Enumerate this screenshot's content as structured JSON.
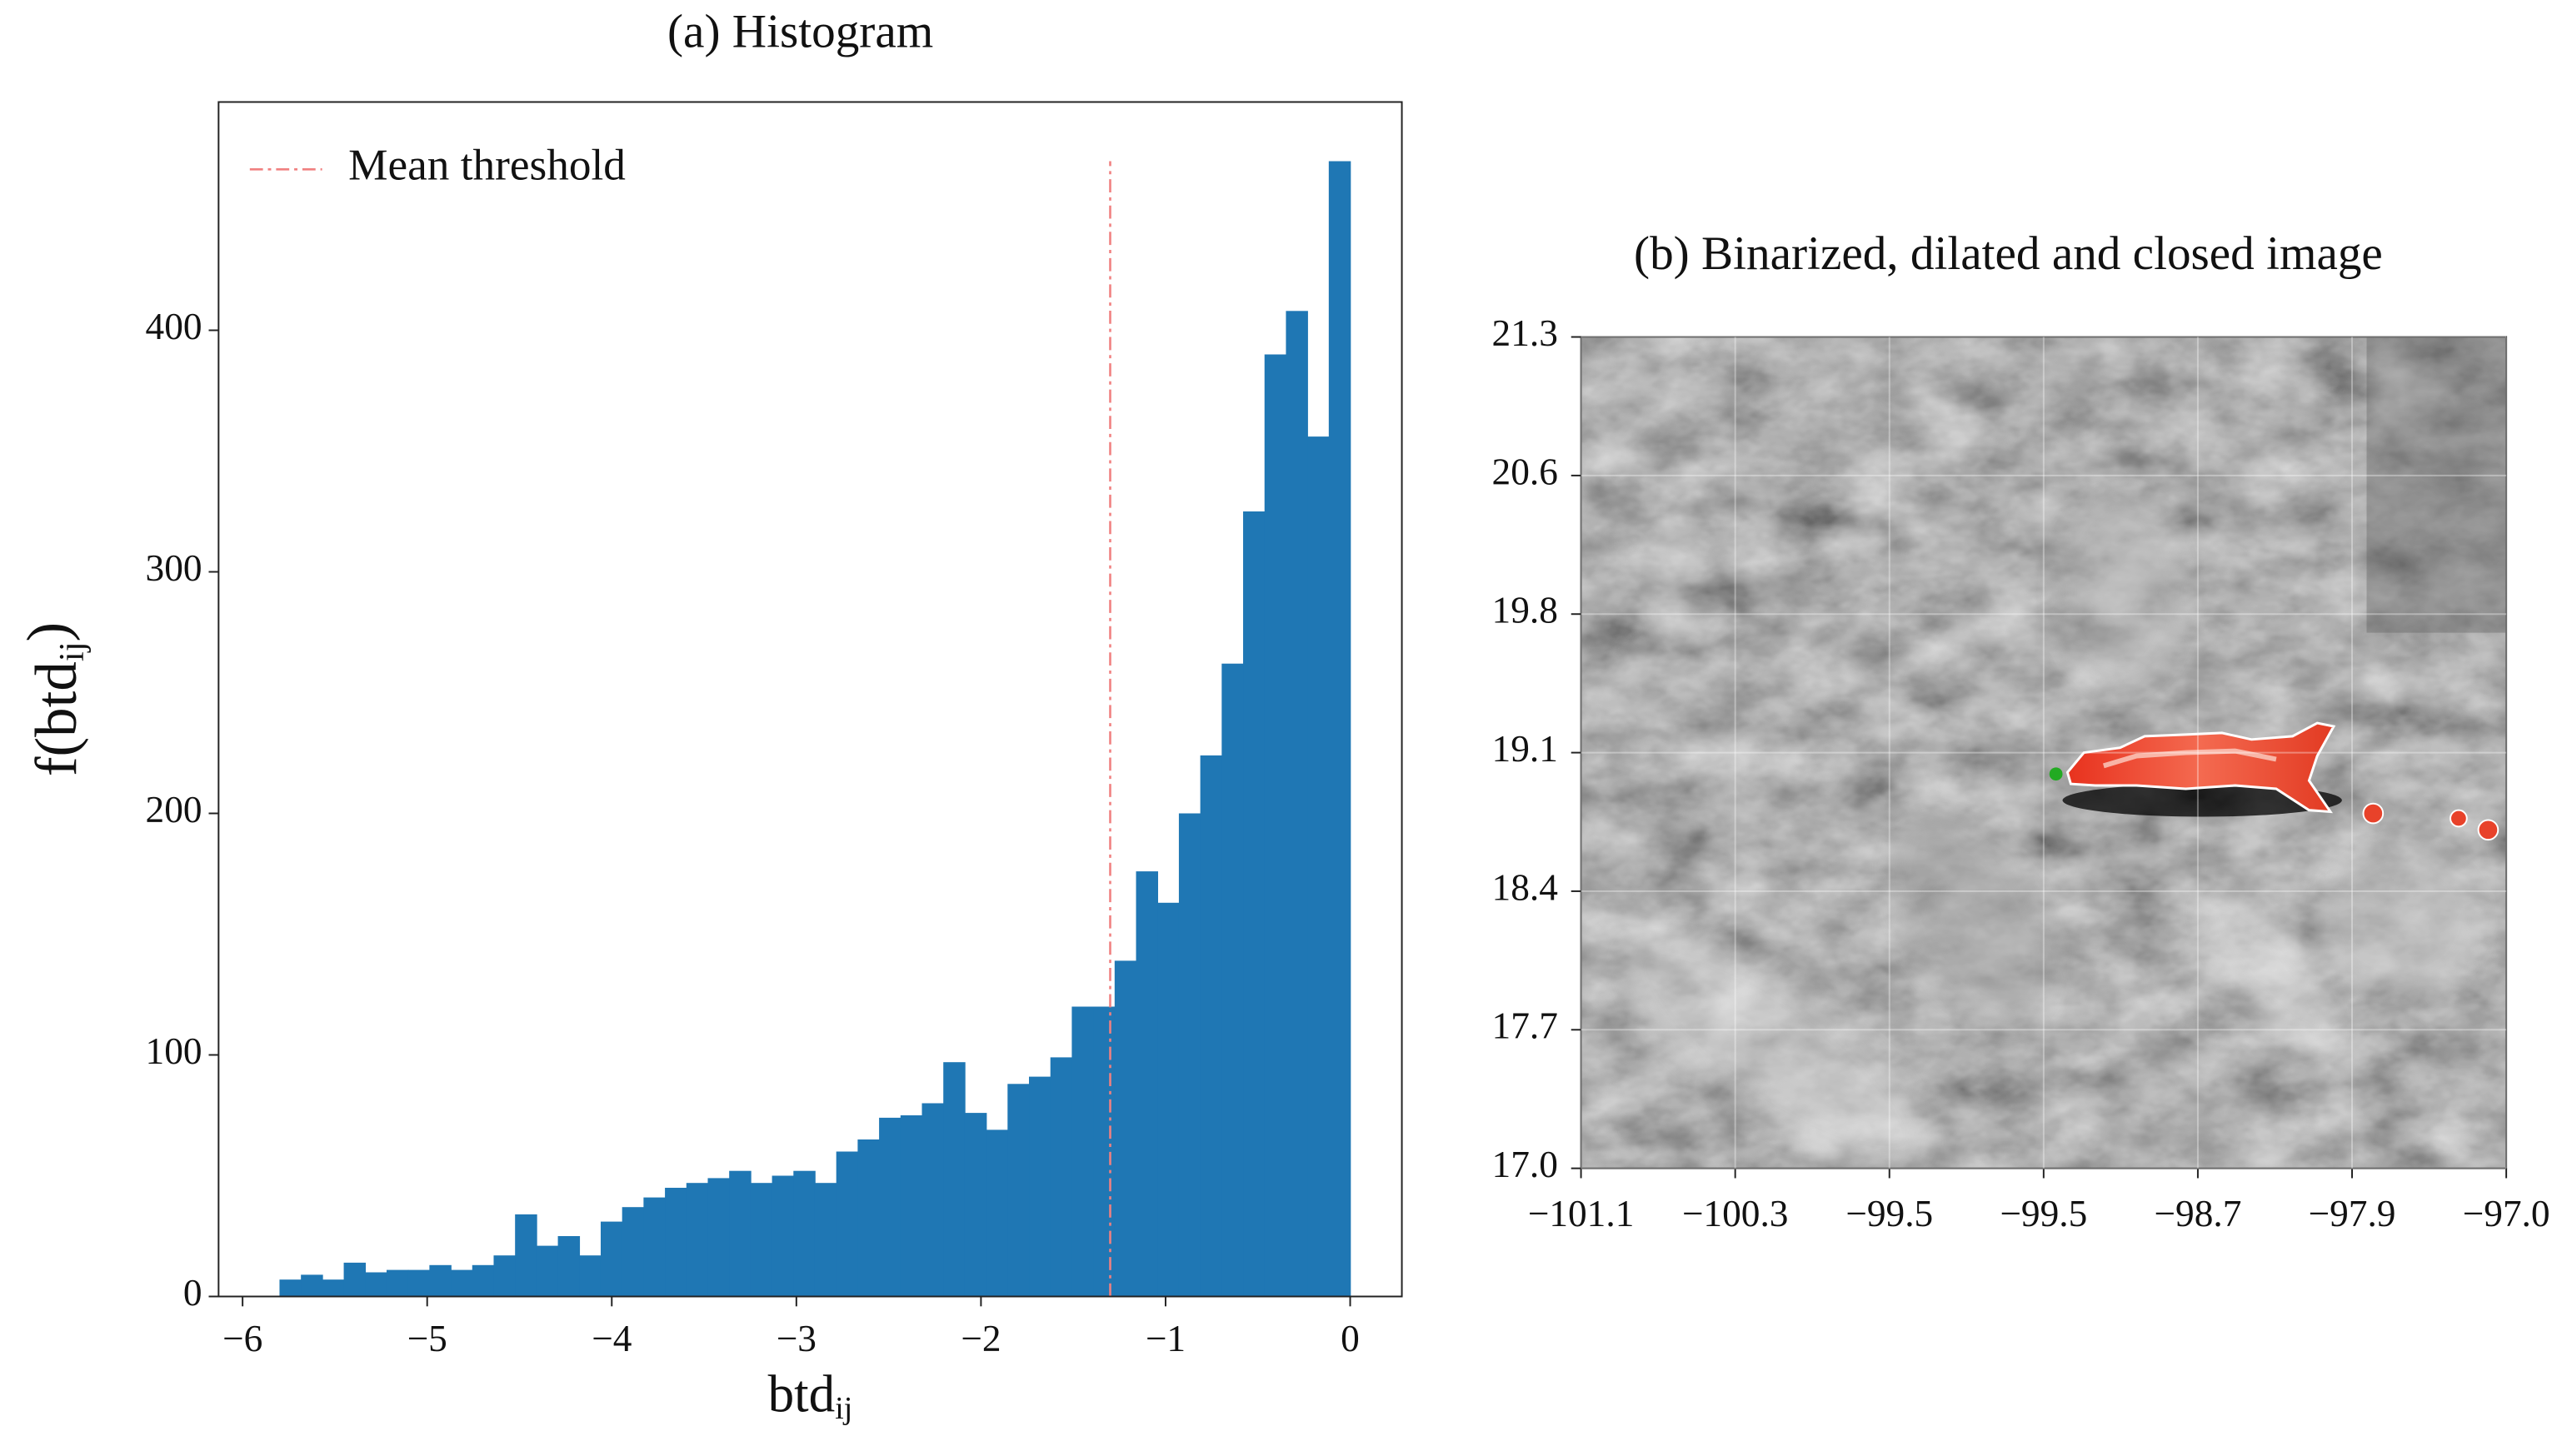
{
  "chart_data": [
    {
      "type": "histogram",
      "title": "(a) Histogram",
      "xlabel": {
        "base": "btd",
        "sub": "ij"
      },
      "ylabel": {
        "base": "f(btd",
        "sub": "ij",
        "end": ")"
      },
      "bins": [
        -5.8,
        -5.684,
        -5.568,
        -5.452,
        -5.336,
        -5.22,
        -5.104,
        -4.988,
        -4.872,
        -4.756,
        -4.64,
        -4.524,
        -4.408,
        -4.292,
        -4.176,
        -4.06,
        -3.944,
        -3.828,
        -3.712,
        -3.596,
        -3.48,
        -3.364,
        -3.248,
        -3.132,
        -3.016,
        -2.9,
        -2.784,
        -2.668,
        -2.552,
        -2.436,
        -2.32,
        -2.204,
        -2.088,
        -1.972,
        -1.856,
        -1.74,
        -1.624,
        -1.508,
        -1.392,
        -1.276,
        -1.16,
        -1.044,
        -0.928,
        -0.812,
        -0.696,
        -0.58,
        -0.464,
        -0.348,
        -0.232,
        -0.116,
        0
      ],
      "values": [
        7,
        9,
        7,
        14,
        10,
        11,
        11,
        13,
        11,
        13,
        17,
        34,
        21,
        25,
        17,
        31,
        37,
        41,
        45,
        47,
        49,
        52,
        47,
        50,
        52,
        47,
        60,
        65,
        74,
        75,
        80,
        97,
        76,
        69,
        88,
        91,
        99,
        120,
        120,
        139,
        176,
        163,
        200,
        224,
        262,
        325,
        390,
        408,
        356,
        470
      ],
      "color": "#1f77b4",
      "xlim": [
        -6.13,
        0.28
      ],
      "ylim": [
        0,
        494.5
      ],
      "xticks": [
        {
          "value": -6,
          "label": "−6"
        },
        {
          "value": -5,
          "label": "−5"
        },
        {
          "value": -4,
          "label": "−4"
        },
        {
          "value": -3,
          "label": "−3"
        },
        {
          "value": -2,
          "label": "−2"
        },
        {
          "value": -1,
          "label": "−1"
        },
        0
      ],
      "yticks": [
        0,
        100,
        200,
        300,
        400
      ],
      "threshold": {
        "name": "Mean threshold",
        "value": -1.3,
        "color": "#f08080"
      },
      "legend": "upper left"
    },
    {
      "type": "image",
      "title": "(b) Binarized, dilated and closed image",
      "xtick_labels": [
        "−101.1",
        "−100.3",
        "−99.5",
        "−99.5",
        "−98.7",
        "−97.9",
        "−97.0"
      ],
      "ytick_labels": [
        "17.0",
        "17.7",
        "18.4",
        "19.1",
        "19.8",
        "20.6",
        "21.3"
      ]
    }
  ]
}
